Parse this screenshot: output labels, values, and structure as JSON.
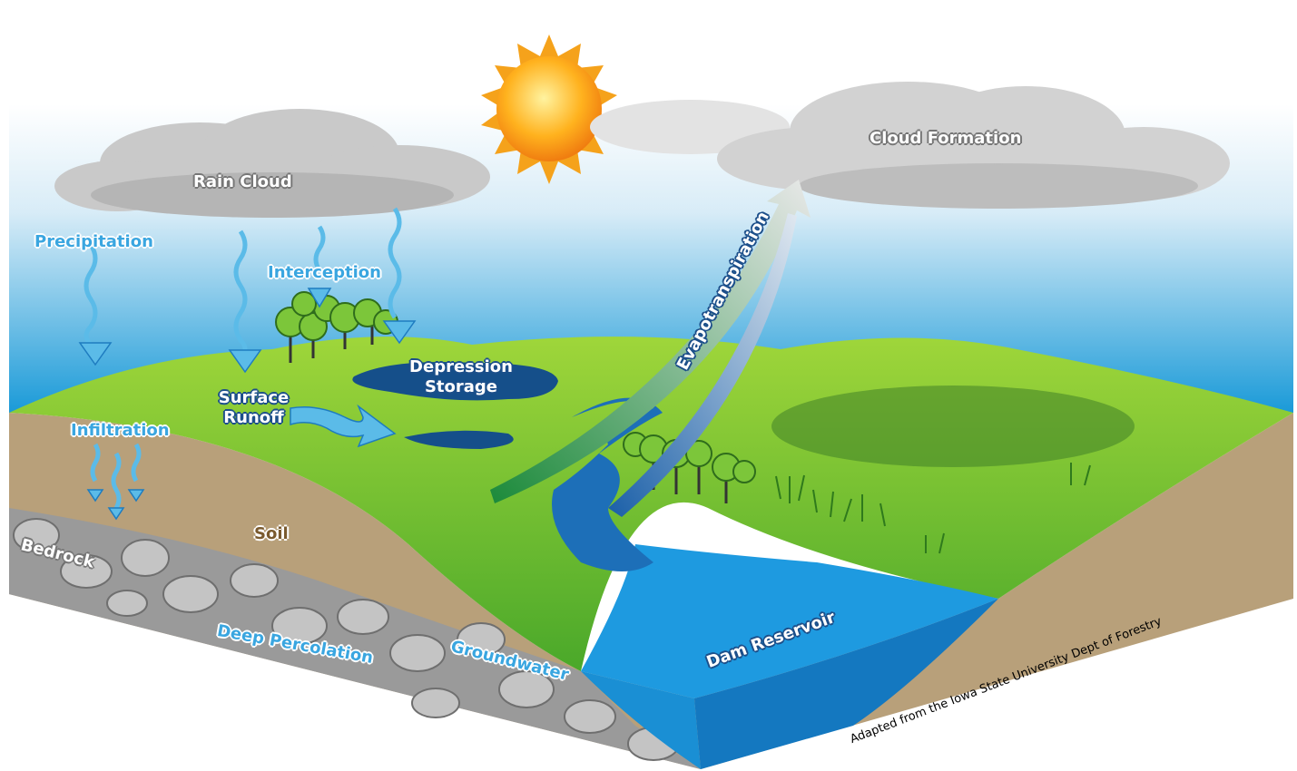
{
  "labels": {
    "rain_cloud": "Rain Cloud",
    "cloud_formation": "Cloud Formation",
    "precipitation": "Precipitation",
    "interception": "Interception",
    "depression_storage": "Depression Storage",
    "surface_runoff": "Surface Runoff",
    "evapotranspiration": "Evapotranspiration",
    "infiltration": "Infiltration",
    "soil": "Soil",
    "bedrock": "Bedrock",
    "deep_percolation": "Deep Percolation",
    "groundwater": "Groundwater",
    "dam_reservoir": "Dam Reservoir"
  },
  "credit": "Adapted from the Iowa State University Dept of Forestry"
}
